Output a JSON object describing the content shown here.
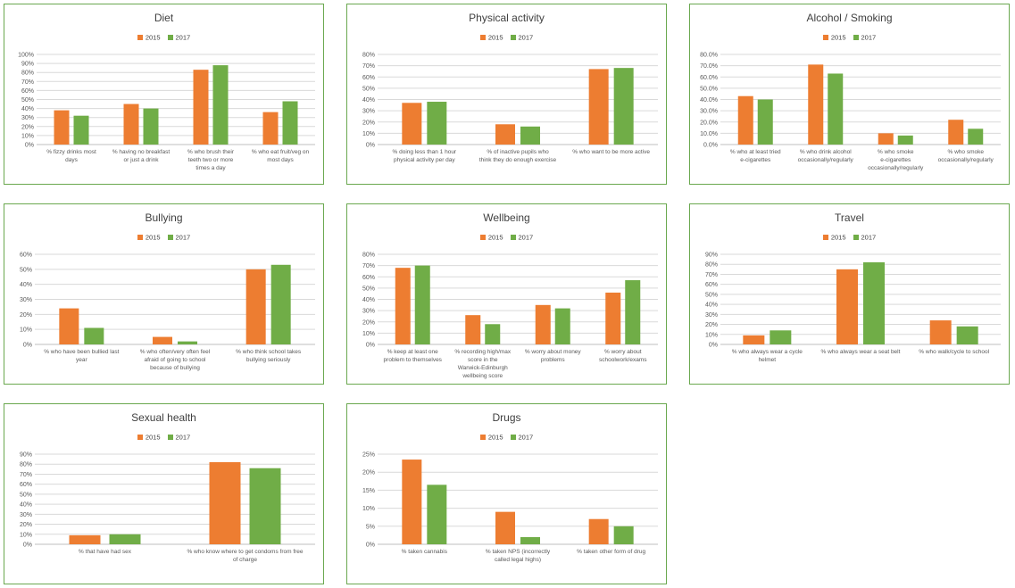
{
  "legend": [
    "2015",
    "2017"
  ],
  "colors": {
    "s2015": "#ed7d31",
    "s2017": "#70ad47",
    "border": "#6aa84f"
  },
  "chart_data": [
    {
      "type": "bar",
      "title": "Diet",
      "categories": [
        "% fizzy drinks most days",
        "% having no breakfast or just a drink",
        "% who brush their teeth two or more times a day",
        "% who eat fruit/veg on most days"
      ],
      "series": [
        {
          "name": "2015",
          "values": [
            38,
            45,
            83,
            36
          ]
        },
        {
          "name": "2017",
          "values": [
            32,
            40,
            88,
            48
          ]
        }
      ],
      "ylim": [
        0,
        100
      ],
      "yticks": [
        "0%",
        "10%",
        "20%",
        "30%",
        "40%",
        "50%",
        "60%",
        "70%",
        "80%",
        "90%",
        "100%"
      ]
    },
    {
      "type": "bar",
      "title": "Physical activity",
      "categories": [
        "% doing less than 1 hour physical activity per day",
        "% of inactive pupils who think they do enough exercise",
        "% who want to be more active"
      ],
      "series": [
        {
          "name": "2015",
          "values": [
            37,
            18,
            67
          ]
        },
        {
          "name": "2017",
          "values": [
            38,
            16,
            68
          ]
        }
      ],
      "ylim": [
        0,
        80
      ],
      "yticks": [
        "0%",
        "10%",
        "20%",
        "30%",
        "40%",
        "50%",
        "60%",
        "70%",
        "80%"
      ]
    },
    {
      "type": "bar",
      "title": "Alcohol / Smoking",
      "categories": [
        "% who at least tried e-cigarettes",
        "% who drink alcohol occasionally/regularly",
        "% who smoke e-cigarettes occasionally/regularly",
        "% who smoke occasionally/regularly"
      ],
      "series": [
        {
          "name": "2015",
          "values": [
            43,
            71,
            10,
            22
          ]
        },
        {
          "name": "2017",
          "values": [
            40,
            63,
            8,
            14
          ]
        }
      ],
      "ylim": [
        0,
        80
      ],
      "yticks": [
        "0.0%",
        "10.0%",
        "20.0%",
        "30.0%",
        "40.0%",
        "50.0%",
        "60.0%",
        "70.0%",
        "80.0%"
      ]
    },
    {
      "type": "bar",
      "title": "Bullying",
      "categories": [
        "% who have been bullied last year",
        "% who often/very often feel afraid of going to school because of bullying",
        "% who think school takes bullying seriously"
      ],
      "series": [
        {
          "name": "2015",
          "values": [
            24,
            5,
            50
          ]
        },
        {
          "name": "2017",
          "values": [
            11,
            2,
            53
          ]
        }
      ],
      "ylim": [
        0,
        60
      ],
      "yticks": [
        "0%",
        "10%",
        "20%",
        "30%",
        "40%",
        "50%",
        "60%"
      ]
    },
    {
      "type": "bar",
      "title": "Wellbeing",
      "categories": [
        "% keep at least one problem to themselves",
        "% recording high/max score in the Warwick-Edinburgh wellbeing score",
        "% worry about money problems",
        "% worry about schoolwork/exams"
      ],
      "series": [
        {
          "name": "2015",
          "values": [
            68,
            26,
            35,
            46
          ]
        },
        {
          "name": "2017",
          "values": [
            70,
            18,
            32,
            57
          ]
        }
      ],
      "ylim": [
        0,
        80
      ],
      "yticks": [
        "0%",
        "10%",
        "20%",
        "30%",
        "40%",
        "50%",
        "60%",
        "70%",
        "80%"
      ]
    },
    {
      "type": "bar",
      "title": "Travel",
      "categories": [
        "% who always wear a cycle helmet",
        "% who always wear a seat belt",
        "% who walk/cycle to school"
      ],
      "series": [
        {
          "name": "2015",
          "values": [
            9,
            75,
            24
          ]
        },
        {
          "name": "2017",
          "values": [
            14,
            82,
            18
          ]
        }
      ],
      "ylim": [
        0,
        90
      ],
      "yticks": [
        "0%",
        "10%",
        "20%",
        "30%",
        "40%",
        "50%",
        "60%",
        "70%",
        "80%",
        "90%"
      ]
    },
    {
      "type": "bar",
      "title": "Sexual health",
      "categories": [
        "% that have had sex",
        "% who know where to get condoms from free of charge"
      ],
      "series": [
        {
          "name": "2015",
          "values": [
            9,
            82
          ]
        },
        {
          "name": "2017",
          "values": [
            10,
            76
          ]
        }
      ],
      "ylim": [
        0,
        90
      ],
      "yticks": [
        "0%",
        "10%",
        "20%",
        "30%",
        "40%",
        "50%",
        "60%",
        "70%",
        "80%",
        "90%"
      ]
    },
    {
      "type": "bar",
      "title": "Drugs",
      "categories": [
        "% taken cannabis",
        "% taken NPS (incorrectly called legal highs)",
        "% taken other form of drug"
      ],
      "series": [
        {
          "name": "2015",
          "values": [
            23.5,
            9,
            7
          ]
        },
        {
          "name": "2017",
          "values": [
            16.5,
            2,
            5
          ]
        }
      ],
      "ylim": [
        0,
        25
      ],
      "yticks": [
        "0%",
        "5%",
        "10%",
        "15%",
        "20%",
        "25%"
      ]
    }
  ]
}
